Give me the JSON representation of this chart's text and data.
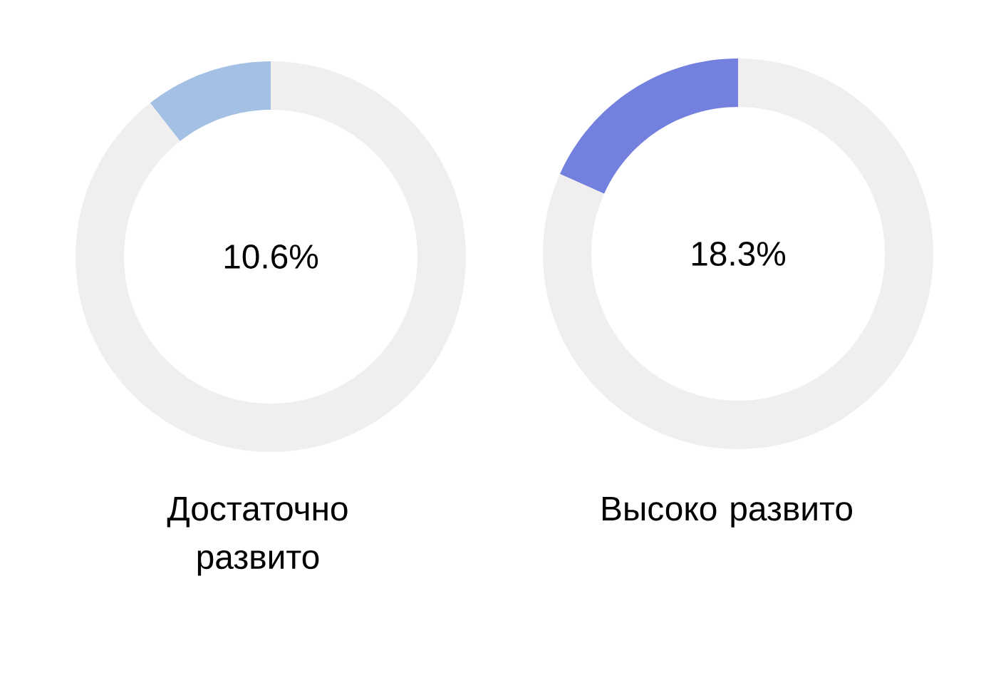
{
  "chart_data": [
    {
      "type": "donut",
      "title": "Достаточно развито",
      "categories": [
        null,
        null
      ],
      "values": [
        10.6,
        89.4
      ],
      "colors": [
        "#a4c0e4",
        "#f0eeee"
      ],
      "annotations": [
        "10.6%"
      ]
    },
    {
      "type": "donut",
      "title": "Высоко развито",
      "categories": [
        null,
        null
      ],
      "values": [
        18.3,
        81.7
      ],
      "colors": [
        "#7480dd",
        "#f0eeee"
      ],
      "annotations": [
        "18.3%"
      ]
    }
  ]
}
